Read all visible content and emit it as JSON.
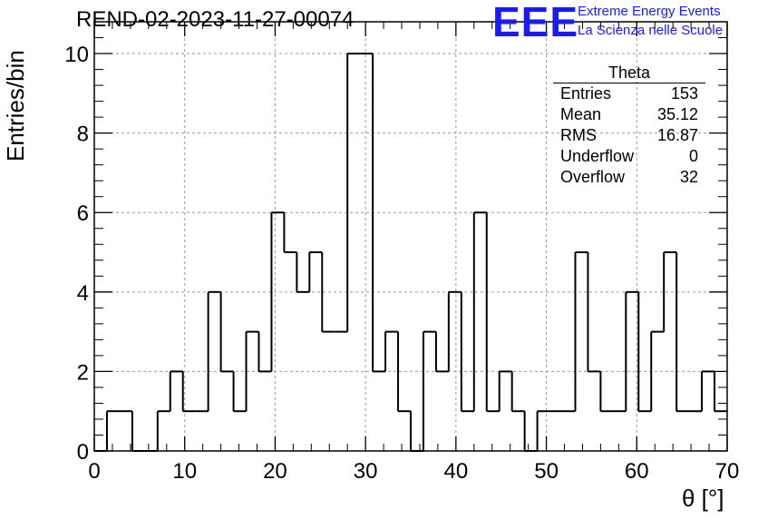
{
  "header": {
    "run_title": "REND-02-2023-11-27-00074"
  },
  "brand": {
    "logo_text": "EEE",
    "line1": "Extreme Energy Events",
    "line2": "La Scienza nelle Scuole",
    "color": "#1a1aff"
  },
  "stats_box": {
    "title": "Theta",
    "rows": [
      {
        "label": "Entries",
        "value": "153"
      },
      {
        "label": "Mean",
        "value": "35.12"
      },
      {
        "label": "RMS",
        "value": "16.87"
      },
      {
        "label": "Underflow",
        "value": "0"
      },
      {
        "label": "Overflow",
        "value": "32"
      }
    ]
  },
  "chart_data": {
    "type": "bar",
    "style": "step-histogram",
    "title": "REND-02-2023-11-27-00074",
    "xlabel": "θ [°]",
    "ylabel": "Entries/bin",
    "xlim": [
      0,
      70
    ],
    "ylim": [
      0,
      10.8
    ],
    "x_ticks": [
      "0",
      "10",
      "20",
      "30",
      "40",
      "50",
      "60",
      "70"
    ],
    "y_ticks": [
      "0",
      "2",
      "4",
      "6",
      "8",
      "10"
    ],
    "grid": true,
    "bin_width": 1.4,
    "bin_low_edges": [
      0,
      1.4,
      2.8,
      4.2,
      5.6,
      7,
      8.4,
      9.8,
      11.2,
      12.6,
      14,
      15.4,
      16.8,
      18.2,
      19.6,
      21,
      22.4,
      23.8,
      25.2,
      26.6,
      28,
      29.4,
      30.8,
      32.2,
      33.6,
      35,
      36.4,
      37.8,
      39.2,
      40.6,
      42,
      43.4,
      44.8,
      46.2,
      47.6,
      49,
      50.4,
      51.8,
      53.2,
      54.6,
      56,
      57.4,
      58.8,
      60.2,
      61.6,
      63,
      64.4,
      65.8,
      67.2,
      68.6
    ],
    "values": [
      0,
      1,
      1,
      0,
      0,
      1,
      2,
      1,
      1,
      4,
      2,
      1,
      3,
      2,
      6,
      5,
      4,
      5,
      3,
      3,
      10,
      10,
      2,
      3,
      1,
      0,
      3,
      2,
      4,
      1,
      6,
      1,
      2,
      1,
      0,
      1,
      1,
      1,
      5,
      2,
      1,
      1,
      4,
      1,
      3,
      5,
      1,
      1,
      2,
      1
    ],
    "line_color": "#000000",
    "grid_color": "#9a9a9a"
  }
}
